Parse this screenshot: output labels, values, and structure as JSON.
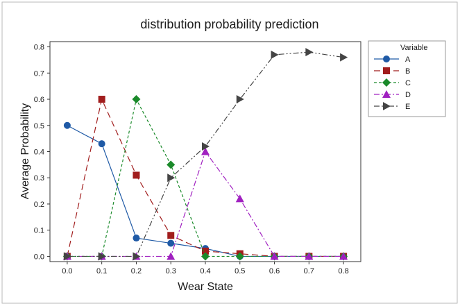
{
  "chart_data": {
    "type": "line",
    "title": "distribution probability prediction",
    "xlabel": "Wear State",
    "ylabel": "Average Probability",
    "x": [
      0.0,
      0.1,
      0.2,
      0.3,
      0.4,
      0.5,
      0.6,
      0.7,
      0.8
    ],
    "x_tick_labels": [
      "0.0",
      "0.1",
      "0.2",
      "0.3",
      "0.4",
      "0.5",
      "0.6",
      "0.7",
      "0.8"
    ],
    "y_tick_labels": [
      "0.0",
      "0.1",
      "0.2",
      "0.3",
      "0.4",
      "0.5",
      "0.6",
      "0.7",
      "0.8"
    ],
    "xlim": [
      -0.05,
      0.85
    ],
    "ylim": [
      -0.02,
      0.82
    ],
    "grid": false,
    "legend": {
      "title": "Variable",
      "placement": "right-outside-top"
    },
    "series": [
      {
        "name": "A",
        "color": "#1f5aa6",
        "marker": "circle",
        "dash": "solid",
        "values": [
          0.5,
          0.43,
          0.07,
          0.05,
          0.03,
          0.0,
          0.0,
          0.0,
          0.0
        ]
      },
      {
        "name": "B",
        "color": "#a11d1d",
        "marker": "square",
        "dash": "long-dash",
        "values": [
          0.0,
          0.6,
          0.31,
          0.08,
          0.02,
          0.01,
          0.0,
          0.0,
          0.0
        ]
      },
      {
        "name": "C",
        "color": "#1a8a2a",
        "marker": "diamond",
        "dash": "short-dash",
        "values": [
          0.0,
          0.0,
          0.6,
          0.35,
          0.0,
          0.0,
          0.0,
          0.0,
          0.0
        ]
      },
      {
        "name": "D",
        "color": "#a020c0",
        "marker": "triangle",
        "dash": "dash-dot",
        "values": [
          0.0,
          0.0,
          0.0,
          0.0,
          0.4,
          0.22,
          0.0,
          0.0,
          0.0
        ]
      },
      {
        "name": "E",
        "color": "#444444",
        "marker": "triangle-right",
        "dash": "dash-dot-dot",
        "values": [
          0.0,
          0.0,
          0.0,
          0.3,
          0.42,
          0.6,
          0.77,
          0.78,
          0.76
        ]
      }
    ]
  }
}
